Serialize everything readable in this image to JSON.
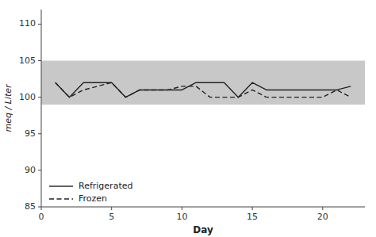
{
  "chart_data": {
    "type": "line",
    "x": [
      1,
      2,
      3,
      4,
      5,
      6,
      7,
      8,
      9,
      10,
      11,
      12,
      13,
      14,
      15,
      16,
      17,
      18,
      19,
      20,
      21,
      22
    ],
    "series": [
      {
        "name": "Refrigerated",
        "color": "#222222",
        "line_style": "solid",
        "values": [
          102,
          100,
          102,
          102,
          102,
          100,
          101,
          101,
          101,
          101,
          102,
          102,
          102,
          100,
          102,
          101,
          101,
          101,
          101,
          101,
          101,
          101.5
        ]
      },
      {
        "name": "Frozen",
        "color": "#222222",
        "line_style": "dashed",
        "values": [
          102,
          100,
          101,
          101.5,
          102,
          100,
          101,
          101,
          101,
          101.5,
          101.5,
          100,
          100,
          100,
          101,
          100,
          100,
          100,
          100,
          100,
          101,
          100
        ]
      }
    ],
    "band": {
      "ymin": 99.0,
      "ymax": 105.0,
      "color": "#c8c8c8"
    },
    "xlabel": "Day",
    "ylabel": "meq / Liter",
    "xlim": [
      0,
      23
    ],
    "ylim": [
      85,
      112
    ],
    "xticks": [
      0,
      5,
      10,
      15,
      20
    ],
    "yticks": [
      85,
      90,
      95,
      100,
      105,
      110
    ],
    "grid": false,
    "legend": "lower left"
  }
}
